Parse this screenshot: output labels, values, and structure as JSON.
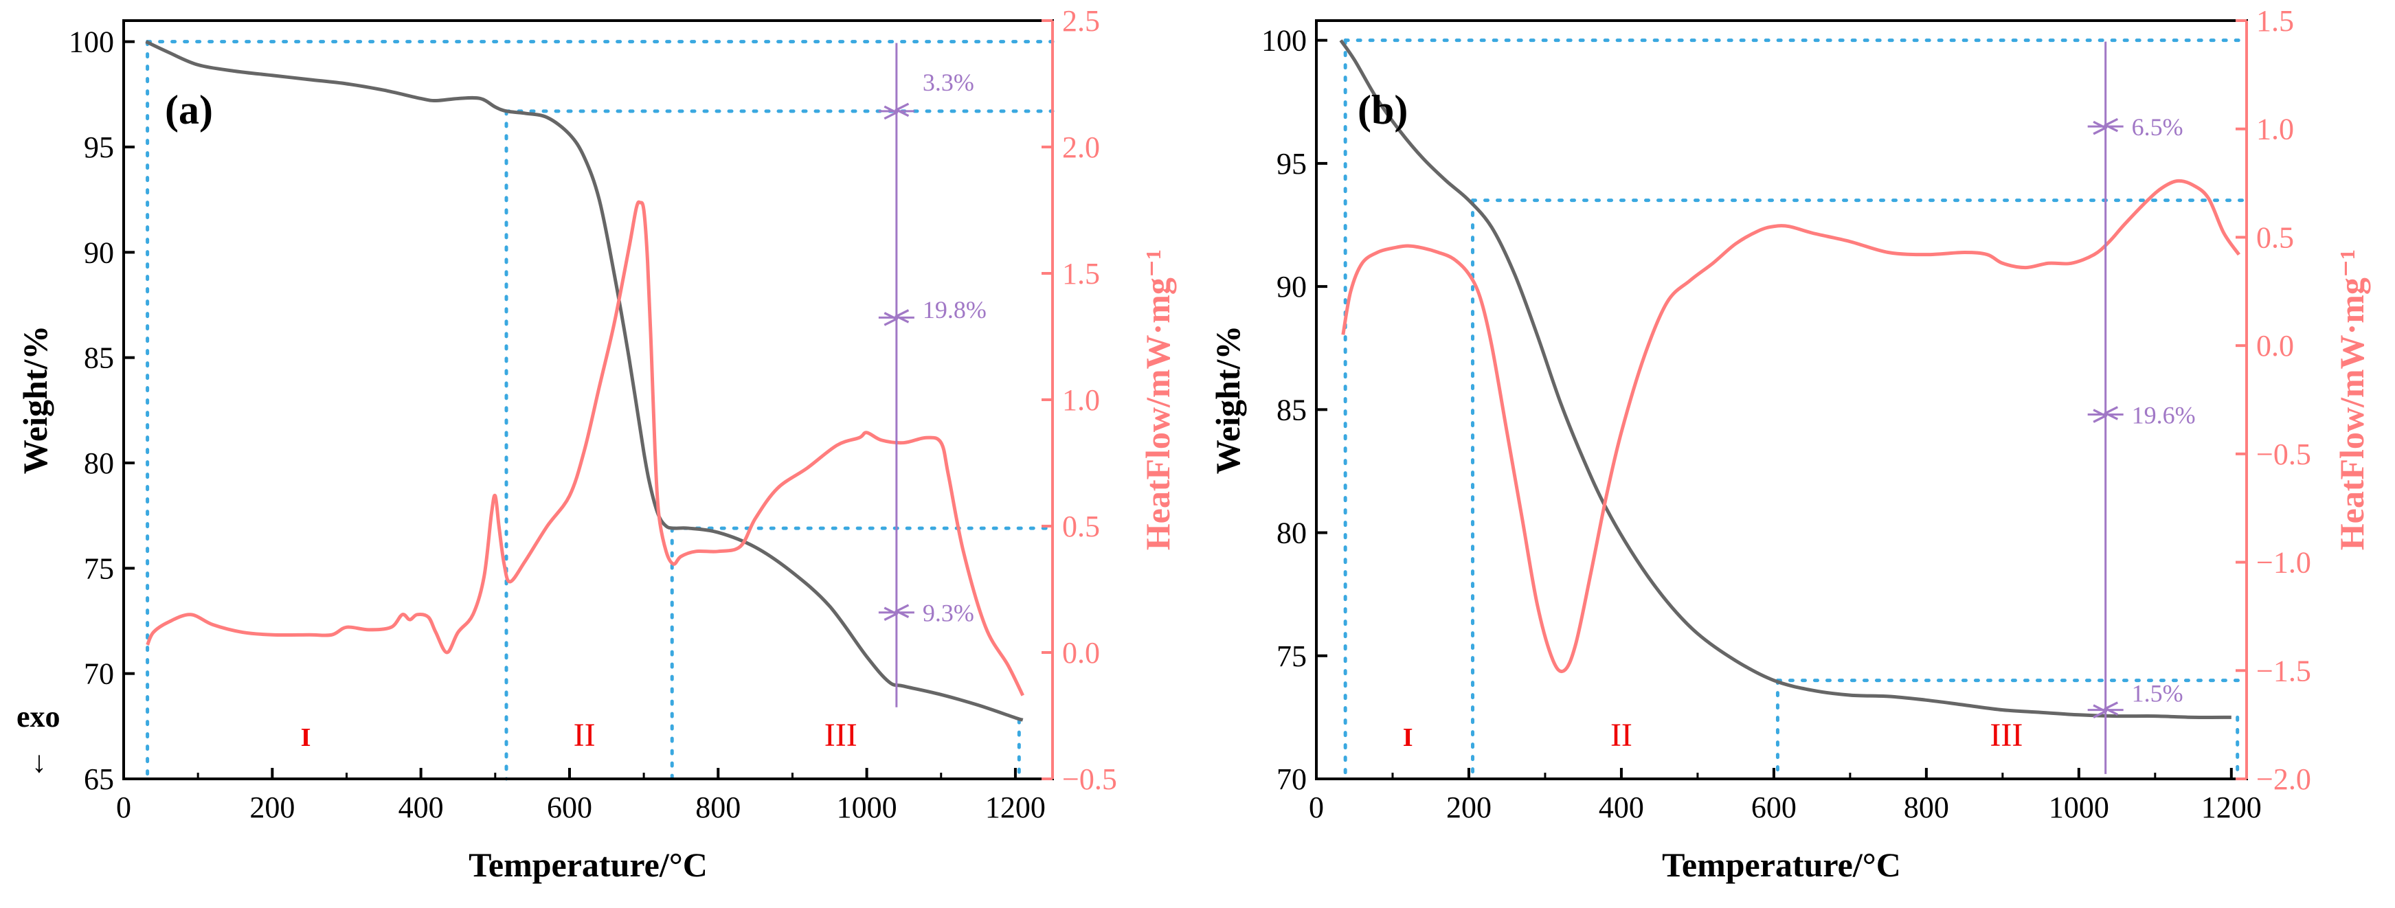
{
  "colors": {
    "weight_line": "#666666",
    "heatflow_line": "#ff7d7d",
    "guide_line": "#3aa8e0",
    "annotation": "#a178c6",
    "stage_label": "#ee0000",
    "axis": "#000000"
  },
  "shared": {
    "exo_label": "exo",
    "exo_arrow": "↓"
  },
  "chart_data": [
    {
      "type": "line",
      "panel_label": "(a)",
      "xlabel": "Temperature/°C",
      "ylabel_left": "Weight/%",
      "ylabel_right": "HeatFlow/mW·mg⁻¹",
      "xlim": [
        0,
        1250
      ],
      "ylim_left": [
        65,
        101
      ],
      "ylim_right": [
        -0.5,
        2.5
      ],
      "x_ticks": [
        0,
        200,
        400,
        600,
        800,
        1000,
        1200
      ],
      "y_ticks_left": [
        65,
        70,
        75,
        80,
        85,
        90,
        95,
        100
      ],
      "y_ticks_right": [
        -0.5,
        0.0,
        0.5,
        1.0,
        1.5,
        2.0,
        2.5
      ],
      "y_tick_labels_right": [
        "−0.5",
        "0.0",
        "0.5",
        "1.0",
        "1.5",
        "2.0",
        "2.5"
      ],
      "series": [
        {
          "name": "Weight",
          "axis": "left",
          "x": [
            30,
            60,
            100,
            150,
            200,
            250,
            300,
            350,
            400,
            420,
            450,
            480,
            500,
            515,
            540,
            570,
            600,
            620,
            640,
            660,
            680,
            700,
            710,
            720,
            730,
            740,
            760,
            800,
            850,
            900,
            950,
            1000,
            1030,
            1050,
            1100,
            1150,
            1200,
            1210
          ],
          "y": [
            100,
            99.5,
            98.9,
            98.6,
            98.4,
            98.2,
            98.0,
            97.7,
            97.3,
            97.2,
            97.3,
            97.3,
            96.9,
            96.7,
            96.6,
            96.4,
            95.6,
            94.5,
            92.5,
            89.0,
            85.0,
            80.5,
            78.7,
            77.5,
            77.0,
            76.9,
            76.9,
            76.7,
            76.0,
            74.8,
            73.2,
            70.8,
            69.6,
            69.4,
            69.0,
            68.5,
            67.9,
            67.8
          ]
        },
        {
          "name": "HeatFlow",
          "axis": "right",
          "x": [
            32,
            40,
            60,
            90,
            120,
            160,
            200,
            250,
            280,
            300,
            330,
            360,
            375,
            385,
            395,
            410,
            420,
            435,
            450,
            470,
            485,
            495,
            500,
            505,
            512,
            520,
            540,
            570,
            600,
            620,
            640,
            660,
            680,
            690,
            695,
            700,
            705,
            710,
            715,
            720,
            730,
            740,
            750,
            770,
            800,
            830,
            850,
            880,
            920,
            960,
            990,
            1000,
            1020,
            1050,
            1080,
            1100,
            1110,
            1130,
            1160,
            1190,
            1210
          ],
          "y": [
            0.03,
            0.08,
            0.12,
            0.15,
            0.11,
            0.08,
            0.07,
            0.07,
            0.07,
            0.1,
            0.09,
            0.1,
            0.15,
            0.13,
            0.15,
            0.14,
            0.08,
            0.0,
            0.08,
            0.15,
            0.3,
            0.55,
            0.62,
            0.5,
            0.35,
            0.28,
            0.36,
            0.5,
            0.62,
            0.8,
            1.05,
            1.3,
            1.6,
            1.76,
            1.78,
            1.75,
            1.55,
            1.2,
            0.8,
            0.55,
            0.4,
            0.35,
            0.38,
            0.4,
            0.4,
            0.42,
            0.53,
            0.65,
            0.73,
            0.82,
            0.85,
            0.87,
            0.84,
            0.83,
            0.85,
            0.83,
            0.7,
            0.4,
            0.1,
            -0.05,
            -0.17
          ]
        }
      ],
      "guide_lines": {
        "horizontal_left": [
          100,
          96.7,
          76.9
        ],
        "vertical_x": [
          32,
          515,
          738,
          1205
        ]
      },
      "mass_loss_markers": [
        100,
        96.7,
        86.9,
        72.9
      ],
      "mass_loss_arrow_x": 1040,
      "mass_loss_arrow_bottom": 68.4,
      "annotations": [
        {
          "text": "3.3%",
          "y": 98.1
        },
        {
          "text": "19.8%",
          "y": 87.3
        },
        {
          "text": "9.3%",
          "y": 72.9
        }
      ],
      "stage_labels": [
        {
          "text": "I",
          "x": 245
        },
        {
          "text": "II",
          "x": 620
        },
        {
          "text": "III",
          "x": 965
        }
      ]
    },
    {
      "type": "line",
      "panel_label": "(b)",
      "xlabel": "Temperature/°C",
      "ylabel_left": "Weight/%",
      "ylabel_right": "HeatFlow/mW·mg⁻¹",
      "xlim": [
        0,
        1220
      ],
      "ylim_left": [
        70,
        100.8
      ],
      "ylim_right": [
        -2.0,
        1.5
      ],
      "x_ticks": [
        0,
        200,
        400,
        600,
        800,
        1000,
        1200
      ],
      "y_ticks_left": [
        70,
        75,
        80,
        85,
        90,
        95,
        100
      ],
      "y_ticks_right": [
        -2.0,
        -1.5,
        -1.0,
        -0.5,
        0.0,
        0.5,
        1.0,
        1.5
      ],
      "y_tick_labels_right": [
        "−2.0",
        "−1.5",
        "−1.0",
        "−0.5",
        "0.0",
        "0.5",
        "1.0",
        "1.5"
      ],
      "series": [
        {
          "name": "Weight",
          "axis": "left",
          "x": [
            32,
            50,
            80,
            110,
            140,
            170,
            200,
            230,
            260,
            290,
            320,
            350,
            380,
            420,
            460,
            500,
            550,
            600,
            650,
            700,
            750,
            800,
            850,
            900,
            950,
            1000,
            1050,
            1100,
            1150,
            1200
          ],
          "y": [
            100,
            99.2,
            97.6,
            96.3,
            95.2,
            94.3,
            93.5,
            92.4,
            90.5,
            88.0,
            85.3,
            83.0,
            81.0,
            78.9,
            77.2,
            75.9,
            74.8,
            74.0,
            73.6,
            73.4,
            73.35,
            73.2,
            73.0,
            72.8,
            72.7,
            72.6,
            72.55,
            72.55,
            72.5,
            72.5
          ],
          "y_note": "weight curve read from left axis"
        },
        {
          "name": "HeatFlow",
          "axis": "right",
          "x": [
            35,
            45,
            60,
            80,
            100,
            120,
            140,
            160,
            180,
            200,
            215,
            230,
            250,
            270,
            290,
            310,
            325,
            340,
            360,
            380,
            400,
            430,
            460,
            490,
            520,
            550,
            580,
            600,
            620,
            650,
            700,
            750,
            800,
            850,
            880,
            900,
            930,
            960,
            990,
            1020,
            1040,
            1060,
            1090,
            1110,
            1130,
            1150,
            1170,
            1190,
            1210
          ],
          "y": [
            0.05,
            0.25,
            0.38,
            0.43,
            0.45,
            0.46,
            0.45,
            0.43,
            0.4,
            0.33,
            0.22,
            0.0,
            -0.4,
            -0.8,
            -1.2,
            -1.45,
            -1.5,
            -1.38,
            -1.05,
            -0.7,
            -0.4,
            -0.05,
            0.2,
            0.3,
            0.38,
            0.47,
            0.53,
            0.55,
            0.55,
            0.52,
            0.48,
            0.43,
            0.42,
            0.43,
            0.42,
            0.38,
            0.36,
            0.38,
            0.38,
            0.42,
            0.48,
            0.56,
            0.67,
            0.73,
            0.76,
            0.74,
            0.68,
            0.52,
            0.42
          ]
        }
      ],
      "guide_lines": {
        "horizontal_left": [
          100,
          93.5,
          74.0
        ],
        "vertical_x": [
          38,
          205,
          605,
          1208
        ]
      },
      "mass_loss_markers": [
        100,
        96.5,
        84.8,
        72.8
      ],
      "mass_loss_arrow_x": 1035,
      "mass_loss_arrow_bottom": 70.2,
      "annotations": [
        {
          "text": "6.5%",
          "y": 96.5
        },
        {
          "text": "19.6%",
          "y": 84.8
        },
        {
          "text": "1.5%",
          "y": 73.5
        }
      ],
      "stage_labels": [
        {
          "text": "I",
          "x": 120
        },
        {
          "text": "II",
          "x": 400
        },
        {
          "text": "III",
          "x": 905
        }
      ]
    }
  ]
}
